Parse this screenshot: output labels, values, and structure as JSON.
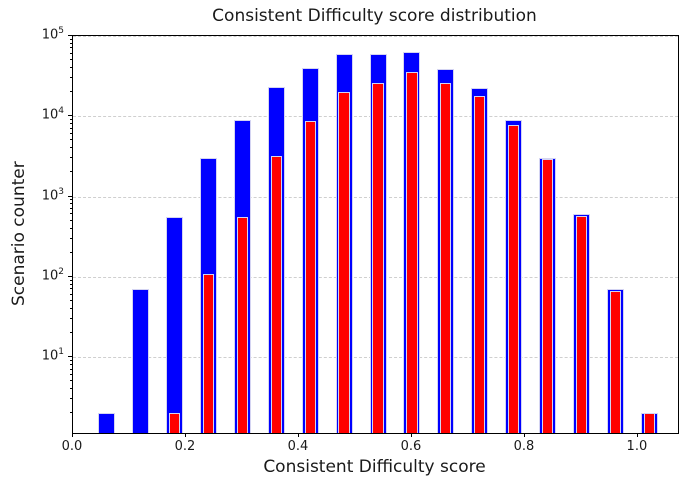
{
  "figure": {
    "title": "Consistent Difficulty score distribution",
    "xlabel": "Consistent Difficulty score",
    "ylabel": "Scenario counter"
  },
  "chart_data": {
    "type": "bar",
    "subtype": "overlaid-histogram",
    "title": "Consistent Difficulty score distribution",
    "xlabel": "Consistent Difficulty score",
    "ylabel": "Scenario counter",
    "bin_centers": [
      0.06,
      0.12,
      0.18,
      0.24,
      0.3,
      0.36,
      0.42,
      0.48,
      0.54,
      0.6,
      0.66,
      0.72,
      0.78,
      0.84,
      0.9,
      0.96,
      1.02
    ],
    "bin_width": 0.06,
    "series": [
      {
        "name": "blue",
        "color": "#0000ff",
        "bar_width": 0.03,
        "values": [
          2,
          70,
          560,
          3000,
          9100,
          23000,
          40000,
          59000,
          59000,
          63000,
          39000,
          22500,
          9000,
          3000,
          600,
          70,
          2
        ]
      },
      {
        "name": "red",
        "color": "#ff0000",
        "bar_width": 0.02,
        "values": [
          0,
          0,
          2,
          110,
          560,
          3200,
          8800,
          20000,
          26000,
          35500,
          26000,
          18000,
          7800,
          2900,
          570,
          66,
          2
        ]
      }
    ],
    "x_ticks": [
      0.0,
      0.2,
      0.4,
      0.6,
      0.8,
      1.0
    ],
    "y_scale": "log",
    "y_tick_exponents": [
      1,
      2,
      3,
      4,
      5
    ],
    "xlim": [
      0.0,
      1.071
    ],
    "ylim": [
      1.14,
      100000
    ],
    "grid": "horizontal-dashed",
    "legend": "none"
  }
}
